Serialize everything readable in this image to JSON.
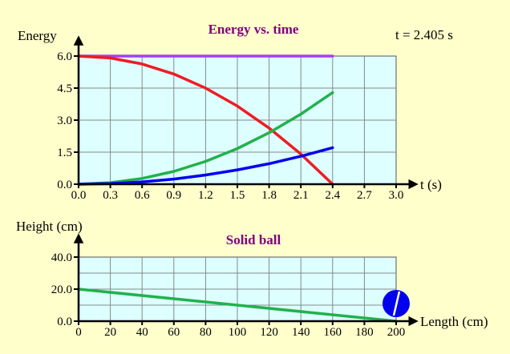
{
  "time_readout": "t = 2.405 s",
  "chart_data": [
    {
      "type": "line",
      "title": "Energy vs. time",
      "xlabel": "t (s)",
      "ylabel": "Energy",
      "xlim": [
        0,
        3.0
      ],
      "ylim": [
        0,
        6.0
      ],
      "x_ticks": [
        "0.0",
        "0.3",
        "0.6",
        "0.9",
        "1.2",
        "1.5",
        "1.8",
        "2.1",
        "2.4",
        "2.7",
        "3.0"
      ],
      "y_ticks": [
        "0.0",
        "1.5",
        "3.0",
        "4.5",
        "6.0"
      ],
      "grid": true,
      "series": [
        {
          "color": "#a040ff",
          "x": [
            0,
            0.3,
            0.6,
            0.9,
            1.2,
            1.5,
            1.8,
            2.1,
            2.4
          ],
          "y": [
            6.0,
            6.0,
            6.0,
            6.0,
            6.0,
            6.0,
            6.0,
            6.0,
            6.0
          ]
        },
        {
          "color": "#ee1c24",
          "x": [
            0,
            0.3,
            0.6,
            0.9,
            1.2,
            1.5,
            1.8,
            2.1,
            2.4
          ],
          "y": [
            6.0,
            5.91,
            5.63,
            5.16,
            4.5,
            3.66,
            2.63,
            1.41,
            0.0
          ]
        },
        {
          "color": "#22b14c",
          "x": [
            0,
            0.3,
            0.6,
            0.9,
            1.2,
            1.5,
            1.8,
            2.1,
            2.4
          ],
          "y": [
            0.0,
            0.07,
            0.27,
            0.6,
            1.07,
            1.67,
            2.41,
            3.28,
            4.29
          ]
        },
        {
          "color": "#0000ee",
          "x": [
            0,
            0.3,
            0.6,
            0.9,
            1.2,
            1.5,
            1.8,
            2.1,
            2.4
          ],
          "y": [
            0.0,
            0.03,
            0.11,
            0.24,
            0.43,
            0.67,
            0.96,
            1.31,
            1.71
          ]
        }
      ]
    },
    {
      "type": "line",
      "title": "Solid ball",
      "xlabel": "Length (cm)",
      "ylabel": "Height (cm)",
      "xlim": [
        0,
        200
      ],
      "ylim": [
        0,
        40
      ],
      "x_ticks": [
        "0",
        "20",
        "40",
        "60",
        "80",
        "100",
        "120",
        "140",
        "160",
        "180",
        "200"
      ],
      "y_ticks": [
        "0.0",
        "20.0",
        "40.0"
      ],
      "grid": true,
      "series": [
        {
          "color": "#22b14c",
          "x": [
            0,
            200
          ],
          "y": [
            20,
            0
          ]
        }
      ],
      "ball": {
        "color": "#0000ee",
        "x": 200,
        "y": 4.5
      }
    }
  ]
}
